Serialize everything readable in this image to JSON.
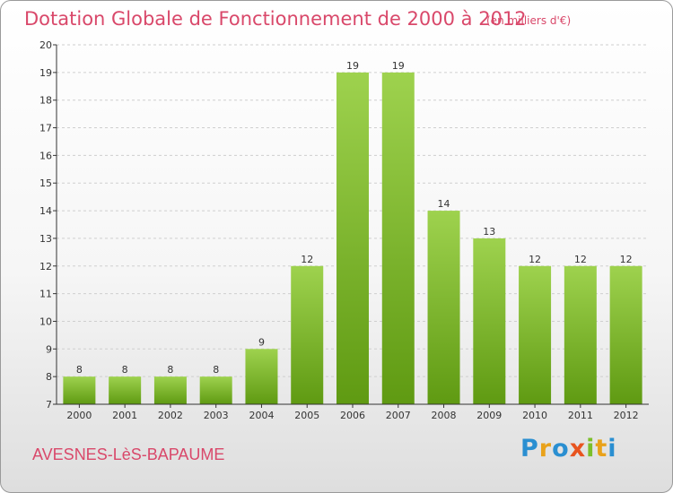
{
  "header": {
    "title": "Dotation Globale de Fonctionnement de 2000 à 2012",
    "unit": "(en milliers d'€)"
  },
  "footer": {
    "city": "AVESNES-LèS-BAPAUME",
    "brand": "Proxiti"
  },
  "colors": {
    "title": "#d9486a",
    "bar_top": "#9ed24e",
    "bar_bottom": "#5f9a12",
    "axis": "#333333",
    "grid": "#cfcfcf"
  },
  "chart_data": {
    "type": "bar",
    "categories": [
      "2000",
      "2001",
      "2002",
      "2003",
      "2004",
      "2005",
      "2006",
      "2007",
      "2008",
      "2009",
      "2010",
      "2011",
      "2012"
    ],
    "values": [
      8,
      8,
      8,
      8,
      9,
      12,
      19,
      19,
      14,
      13,
      12,
      12,
      12
    ],
    "title": "Dotation Globale de Fonctionnement de 2000 à 2012",
    "xlabel": "",
    "ylabel": "",
    "ylim": [
      7,
      20
    ],
    "yticks": [
      7,
      8,
      9,
      10,
      11,
      12,
      13,
      14,
      15,
      16,
      17,
      18,
      19,
      20
    ],
    "grid": true,
    "legend": "none"
  }
}
